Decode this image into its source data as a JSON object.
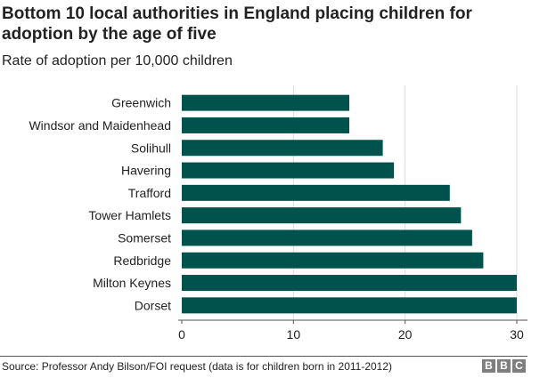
{
  "header": {
    "title": "Bottom 10 local authorities in England placing children for adoption by the age of five",
    "subtitle": "Rate of adoption per 10,000 children"
  },
  "footer": {
    "source": "Source: Professor Andy Bilson/FOI request (data is for children born in 2011-2012)",
    "logo_letters": [
      "B",
      "B",
      "C"
    ]
  },
  "colors": {
    "bar": "#00524C",
    "grid": "#dddddd",
    "axis": "#555555"
  },
  "chart_data": {
    "type": "bar",
    "orientation": "horizontal",
    "title": "Bottom 10 local authorities in England placing children for adoption by the age of five",
    "subtitle": "Rate of adoption per 10,000 children",
    "categories": [
      "Greenwich",
      "Windsor and Maidenhead",
      "Solihull",
      "Havering",
      "Trafford",
      "Tower Hamlets",
      "Somerset",
      "Redbridge",
      "Milton Keynes",
      "Dorset"
    ],
    "values": [
      15,
      15,
      18,
      19,
      24,
      25,
      26,
      27,
      30,
      30
    ],
    "xlim": [
      0,
      30
    ],
    "xticks": [
      0,
      10,
      20,
      30
    ],
    "grid": true
  }
}
